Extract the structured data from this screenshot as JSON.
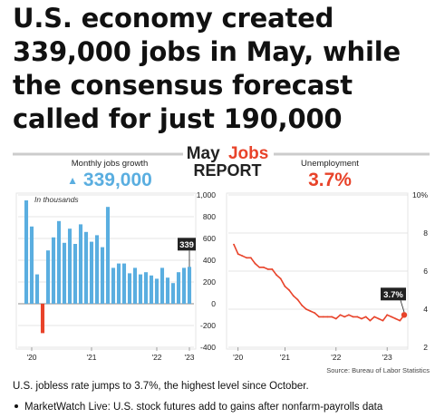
{
  "headline": "U.S. economy created 339,000 jobs in May, while the consensus forecast called for just 190,000",
  "graphic": {
    "title_part1": "May",
    "title_part2": "Jobs",
    "title_line2": "REPORT",
    "source": "Source: Bureau of Labor Statistics",
    "colors": {
      "jobs": "#5aaee0",
      "jobs_negative": "#e8432a",
      "unemployment": "#e8432a",
      "dark": "#222222",
      "grid": "#dddddd"
    }
  },
  "chart_data": [
    {
      "type": "bar",
      "subtitle": "Monthly jobs growth",
      "headline_value": "339,000",
      "headline_arrow": "▲",
      "inner_label": "In thousands",
      "callout_label": "339",
      "x_tick_labels": [
        "'20",
        "'21",
        "'22",
        "'23"
      ],
      "x_tick_indices": [
        1,
        12,
        24,
        36
      ],
      "y_ticks": [
        1000,
        800,
        600,
        400,
        200,
        0,
        -200,
        -400
      ],
      "y_tick_labels": [
        "1,000",
        "800",
        "600",
        "400",
        "200",
        "0",
        "-200",
        "-400"
      ],
      "ylim": [
        -400,
        1000
      ],
      "values": [
        950,
        710,
        270,
        -270,
        490,
        610,
        760,
        560,
        690,
        550,
        730,
        660,
        570,
        630,
        520,
        890,
        330,
        370,
        370,
        280,
        330,
        270,
        290,
        260,
        230,
        330,
        240,
        190,
        290,
        330,
        339
      ]
    },
    {
      "type": "line",
      "subtitle": "Unemployment",
      "headline_value": "3.7%",
      "callout_label": "3.7%",
      "x_tick_labels": [
        "'20",
        "'21",
        "'22",
        "'23"
      ],
      "x_tick_indices": [
        1,
        12,
        24,
        36
      ],
      "y_ticks": [
        10,
        8,
        6,
        4,
        2
      ],
      "y_tick_labels": [
        "10%",
        "8",
        "6",
        "4",
        "2"
      ],
      "ylim": [
        2,
        10
      ],
      "x": [
        0,
        1,
        2,
        3,
        4,
        5,
        6,
        7,
        8,
        9,
        10,
        11,
        12,
        13,
        14,
        15,
        16,
        17,
        18,
        19,
        20,
        21,
        22,
        23,
        24,
        25,
        26,
        27,
        28,
        29,
        30,
        31,
        32,
        33,
        34,
        35,
        36,
        37,
        38,
        39,
        40
      ],
      "values": [
        7.4,
        6.9,
        6.8,
        6.7,
        6.7,
        6.4,
        6.2,
        6.2,
        6.1,
        6.1,
        5.8,
        5.6,
        5.2,
        5.0,
        4.7,
        4.5,
        4.2,
        4.0,
        3.9,
        3.8,
        3.6,
        3.6,
        3.6,
        3.6,
        3.5,
        3.7,
        3.6,
        3.7,
        3.6,
        3.6,
        3.5,
        3.6,
        3.4,
        3.6,
        3.5,
        3.4,
        3.7,
        3.6,
        3.5,
        3.4,
        3.7
      ]
    }
  ]
}
